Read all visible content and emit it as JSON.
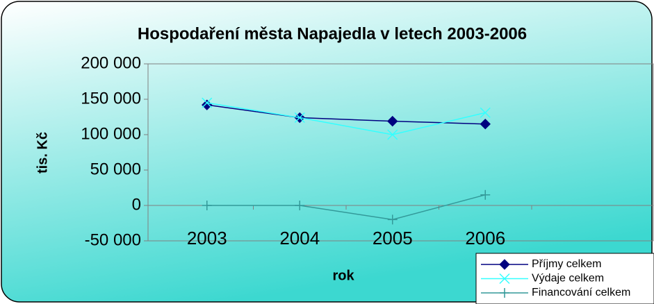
{
  "chart_data": {
    "type": "line",
    "title": "Hospodaření města Napajedla v letech 2003-2006",
    "ylabel": "tis. Kč",
    "xlabel": "rok",
    "categories": [
      "2003",
      "2004",
      "2005",
      "2006"
    ],
    "series": [
      {
        "name": "Příjmy celkem",
        "color": "#000080",
        "marker": "diamond",
        "values": [
          142000,
          124000,
          119000,
          115000
        ]
      },
      {
        "name": "Výdaje celkem",
        "color": "#33ffff",
        "marker": "x",
        "values": [
          145000,
          124000,
          100000,
          131000
        ]
      },
      {
        "name": "Financování celkem",
        "color": "#339999",
        "marker": "plus",
        "values": [
          0,
          0,
          -20000,
          15000
        ]
      }
    ],
    "ylim": [
      -50000,
      200000
    ],
    "yticks": [
      {
        "value": -50000,
        "label": "-50 000"
      },
      {
        "value": 0,
        "label": "0"
      },
      {
        "value": 50000,
        "label": "50 000"
      },
      {
        "value": 100000,
        "label": "100 000"
      },
      {
        "value": 150000,
        "label": "150 000"
      },
      {
        "value": 200000,
        "label": "200 000"
      }
    ],
    "grid": false,
    "legend": "bottom-right"
  }
}
